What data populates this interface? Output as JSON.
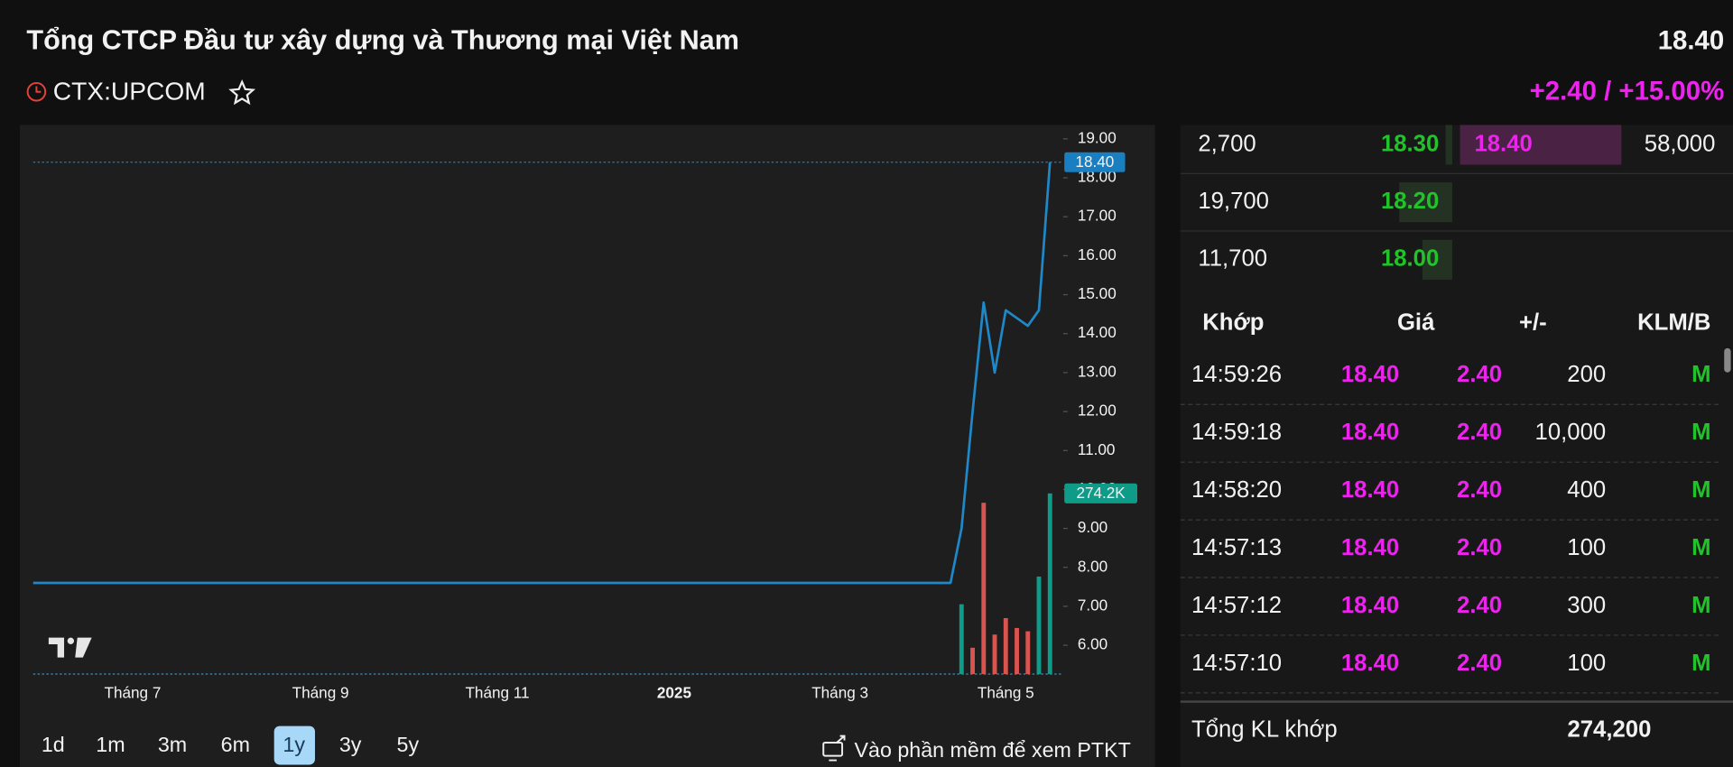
{
  "header": {
    "title": "Tổng CTCP Đầu tư xây dựng và Thương mại Việt Nam",
    "price": "18.40",
    "symbol": "CTX:UPCOM",
    "change": "+2.40 / +15.00%"
  },
  "chart_data": {
    "type": "line",
    "categories": [
      null,
      null,
      null,
      null,
      null,
      null,
      null,
      null,
      null,
      "Tháng 7",
      null,
      null,
      null,
      null,
      null,
      null,
      null,
      null,
      null,
      null,
      null,
      null,
      null,
      null,
      null,
      null,
      "Tháng 9",
      null,
      null,
      null,
      null,
      null,
      null,
      null,
      null,
      null,
      null,
      null,
      null,
      null,
      null,
      null,
      "Tháng 11",
      null,
      null,
      null,
      null,
      null,
      null,
      null,
      null,
      null,
      null,
      null,
      null,
      null,
      null,
      null,
      "2025",
      null,
      null,
      null,
      null,
      null,
      null,
      null,
      null,
      null,
      null,
      null,
      null,
      null,
      null,
      "Tháng 3",
      null,
      null,
      null,
      null,
      null,
      null,
      null,
      null,
      null,
      null,
      null,
      null,
      null,
      null,
      "Tháng 5",
      null,
      null,
      null,
      null
    ],
    "series": [
      {
        "name": "Giá",
        "color": "#1e88c8",
        "values": [
          7.6,
          7.6,
          7.6,
          7.6,
          7.6,
          7.6,
          7.6,
          7.6,
          7.6,
          7.6,
          7.6,
          7.6,
          7.6,
          7.6,
          7.6,
          7.6,
          7.6,
          7.6,
          7.6,
          7.6,
          7.6,
          7.6,
          7.6,
          7.6,
          7.6,
          7.6,
          7.6,
          7.6,
          7.6,
          7.6,
          7.6,
          7.6,
          7.6,
          7.6,
          7.6,
          7.6,
          7.6,
          7.6,
          7.6,
          7.6,
          7.6,
          7.6,
          7.6,
          7.6,
          7.6,
          7.6,
          7.6,
          7.6,
          7.6,
          7.6,
          7.6,
          7.6,
          7.6,
          7.6,
          7.6,
          7.6,
          7.6,
          7.6,
          7.6,
          7.6,
          7.6,
          7.6,
          7.6,
          7.6,
          7.6,
          7.6,
          7.6,
          7.6,
          7.6,
          7.6,
          7.6,
          7.6,
          7.6,
          7.6,
          7.6,
          7.6,
          7.6,
          7.6,
          7.6,
          7.6,
          7.6,
          7.6,
          7.6,
          7.6,
          9.0,
          12.0,
          14.8,
          13.0,
          14.6,
          14.4,
          14.2,
          14.6,
          18.4
        ],
        "value_labels": [
          null,
          null,
          null,
          null,
          null,
          null,
          null,
          null,
          null,
          null,
          null,
          null,
          null,
          null,
          null,
          null,
          null,
          null,
          null,
          null,
          null,
          null,
          null,
          null,
          null,
          null,
          null,
          null,
          null,
          null,
          null,
          null,
          null,
          null,
          null,
          null,
          null,
          null,
          null,
          null,
          null,
          null,
          null,
          null,
          null,
          null,
          null,
          null,
          null,
          null,
          null,
          null,
          null,
          null,
          null,
          null,
          null,
          null,
          null,
          null,
          null,
          null,
          null,
          null,
          null,
          null,
          null,
          null,
          null,
          null,
          null,
          null,
          null,
          null,
          null,
          null,
          null,
          null,
          null,
          null,
          null,
          null,
          null,
          null,
          null,
          null,
          null,
          null,
          null,
          null,
          null,
          null,
          "18.40"
        ]
      },
      {
        "name": "Khối lượng",
        "type": "bar",
        "axis": "y2",
        "color": "#0e9c88",
        "values": [
          null,
          null,
          null,
          null,
          null,
          null,
          null,
          null,
          null,
          null,
          null,
          null,
          null,
          null,
          null,
          null,
          null,
          null,
          null,
          null,
          null,
          null,
          null,
          null,
          null,
          null,
          null,
          null,
          null,
          null,
          null,
          null,
          null,
          null,
          null,
          null,
          null,
          null,
          null,
          null,
          null,
          null,
          null,
          null,
          null,
          null,
          null,
          null,
          null,
          null,
          null,
          null,
          null,
          null,
          null,
          null,
          null,
          null,
          null,
          null,
          null,
          null,
          null,
          null,
          null,
          null,
          null,
          null,
          null,
          null,
          null,
          null,
          null,
          null,
          null,
          null,
          null,
          null,
          null,
          null,
          null,
          null,
          null,
          null,
          106000,
          40000,
          260000,
          60000,
          85000,
          70000,
          65000,
          148000,
          274200
        ],
        "colors": [
          null,
          null,
          null,
          null,
          null,
          null,
          null,
          null,
          null,
          null,
          null,
          null,
          null,
          null,
          null,
          null,
          null,
          null,
          null,
          null,
          null,
          null,
          null,
          null,
          null,
          null,
          null,
          null,
          null,
          null,
          null,
          null,
          null,
          null,
          null,
          null,
          null,
          null,
          null,
          null,
          null,
          null,
          null,
          null,
          null,
          null,
          null,
          null,
          null,
          null,
          null,
          null,
          null,
          null,
          null,
          null,
          null,
          null,
          null,
          null,
          null,
          null,
          null,
          null,
          null,
          null,
          null,
          null,
          null,
          null,
          null,
          null,
          null,
          null,
          null,
          null,
          null,
          null,
          null,
          null,
          null,
          null,
          null,
          null,
          "#0e9c88",
          "#d9534f",
          "#d9534f",
          "#d9534f",
          "#d9534f",
          "#d9534f",
          "#d9534f",
          "#0e9c88",
          "#0e9c88"
        ],
        "value_labels": [
          null,
          null,
          null,
          null,
          null,
          null,
          null,
          null,
          null,
          null,
          null,
          null,
          null,
          null,
          null,
          null,
          null,
          null,
          null,
          null,
          null,
          null,
          null,
          null,
          null,
          null,
          null,
          null,
          null,
          null,
          null,
          null,
          null,
          null,
          null,
          null,
          null,
          null,
          null,
          null,
          null,
          null,
          null,
          null,
          null,
          null,
          null,
          null,
          null,
          null,
          null,
          null,
          null,
          null,
          null,
          null,
          null,
          null,
          null,
          null,
          null,
          null,
          null,
          null,
          null,
          null,
          null,
          null,
          null,
          null,
          null,
          null,
          null,
          null,
          null,
          null,
          null,
          null,
          null,
          null,
          null,
          null,
          null,
          null,
          null,
          null,
          null,
          null,
          null,
          null,
          null,
          null,
          "274.2K"
        ]
      }
    ],
    "ylim": [
      5.26,
      19.3
    ],
    "yticks": [
      {
        "value": 6,
        "label": "6.00"
      },
      {
        "value": 7,
        "label": "7.00"
      },
      {
        "value": 8,
        "label": "8.00"
      },
      {
        "value": 9,
        "label": "9.00"
      },
      {
        "value": 10,
        "label": "10.00"
      },
      {
        "value": 11,
        "label": "11.00"
      },
      {
        "value": 12,
        "label": "12.00"
      },
      {
        "value": 13,
        "label": "13.00"
      },
      {
        "value": 14,
        "label": "14.00"
      },
      {
        "value": 15,
        "label": "15.00"
      },
      {
        "value": 16,
        "label": "16.00"
      },
      {
        "value": 17,
        "label": "17.00"
      },
      {
        "value": 18,
        "label": "18.00"
      },
      {
        "value": 19,
        "label": "19.00"
      }
    ],
    "y2lim": [
      0,
      830000
    ],
    "grid": false
  },
  "periods": [
    "1d",
    "1m",
    "3m",
    "6m",
    "1y",
    "3y",
    "5y"
  ],
  "link": "Vào phần mềm để xem PTKT",
  "orderbook": [
    [
      "2,700",
      "18.30",
      "18.40",
      "58,000"
    ],
    [
      "19,700",
      "18.20"
    ],
    [
      "11,700",
      "18.00"
    ]
  ],
  "trades": {
    "header": [
      "Khớp",
      "Giá",
      "+/-",
      "KLM/B"
    ],
    "rows": [
      [
        "14:59:26",
        "18.40",
        "2.40",
        "200",
        "M"
      ],
      [
        "14:59:18",
        "18.40",
        "2.40",
        "10,000",
        "M"
      ],
      [
        "14:58:20",
        "18.40",
        "2.40",
        "400",
        "M"
      ],
      [
        "14:57:13",
        "18.40",
        "2.40",
        "100",
        "M"
      ],
      [
        "14:57:12",
        "18.40",
        "2.40",
        "300",
        "M"
      ],
      [
        "14:57:10",
        "18.40",
        "2.40",
        "100",
        "M"
      ]
    ]
  },
  "total": {
    "label": "Tổng KL khớp",
    "value": "274,200"
  }
}
